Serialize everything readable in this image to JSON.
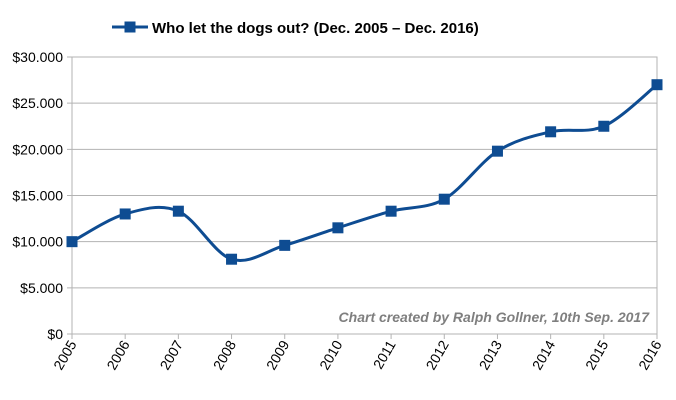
{
  "chart_data": {
    "type": "line",
    "title": "",
    "xlabel": "",
    "ylabel": "",
    "categories": [
      "2005",
      "2006",
      "2007",
      "2008",
      "2009",
      "2010",
      "2011",
      "2012",
      "2013",
      "2014",
      "2015",
      "2016"
    ],
    "series": [
      {
        "name": "Who let the dogs out? (Dec. 2005 – Dec. 2016)",
        "values": [
          10000,
          13000,
          13300,
          8100,
          9600,
          11500,
          13300,
          14600,
          19800,
          21900,
          22500,
          27000
        ],
        "color": "#0e4c92",
        "marker": "square",
        "smooth": true
      }
    ],
    "ylim": [
      0,
      30000
    ],
    "yticks": [
      0,
      5000,
      10000,
      15000,
      20000,
      25000,
      30000
    ],
    "ytick_labels": [
      "$0",
      "$5.000",
      "$10.000",
      "$15.000",
      "$20.000",
      "$25.000",
      "$30.000"
    ],
    "grid": true,
    "legend_position": "top",
    "annotation": "Chart created by Ralph Gollner, 10th Sep. 2017"
  }
}
